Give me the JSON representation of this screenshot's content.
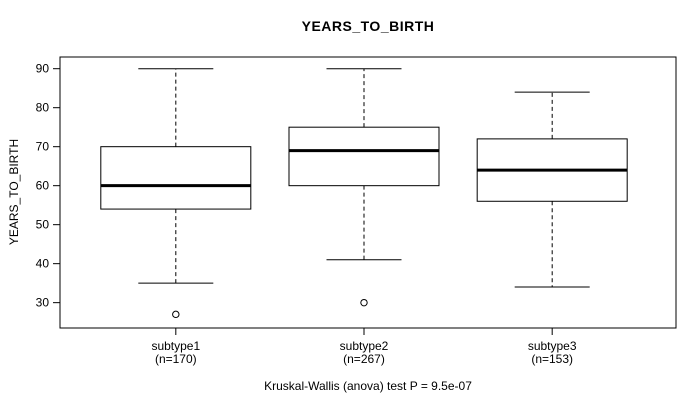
{
  "chart_data": {
    "type": "boxplot",
    "title": "YEARS_TO_BIRTH",
    "ylabel": "YEARS_TO_BIRTH",
    "xlabel": "",
    "ylim": [
      23.5,
      93.0
    ],
    "yticks": [
      30,
      40,
      50,
      60,
      70,
      80,
      90
    ],
    "grid": false,
    "groups": [
      {
        "label": "subtype1",
        "sublabel": "(n=170)",
        "n": 170,
        "lower_whisker": 35,
        "q1": 54,
        "median": 60,
        "q3": 70,
        "upper_whisker": 90,
        "outliers": [
          27
        ]
      },
      {
        "label": "subtype2",
        "sublabel": "(n=267)",
        "n": 267,
        "lower_whisker": 41,
        "q1": 60,
        "median": 69,
        "q3": 75,
        "upper_whisker": 90,
        "outliers": [
          30
        ]
      },
      {
        "label": "subtype3",
        "sublabel": "(n=153)",
        "n": 153,
        "lower_whisker": 34,
        "q1": 56,
        "median": 64,
        "q3": 72,
        "upper_whisker": 84,
        "outliers": []
      }
    ],
    "annotation": "Kruskal-Wallis (anova) test P = 9.5e-07",
    "colors": {
      "line": "#000000",
      "box_fill": "#ffffff",
      "background": "#ffffff"
    }
  }
}
